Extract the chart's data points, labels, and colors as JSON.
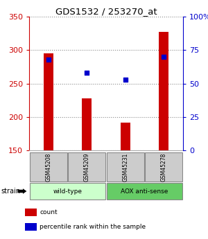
{
  "title": "GDS1532 / 253270_at",
  "samples": [
    "GSM45208",
    "GSM45209",
    "GSM45231",
    "GSM45278"
  ],
  "counts": [
    295,
    228,
    192,
    327
  ],
  "percentile_ranks": [
    68,
    58,
    53,
    70
  ],
  "ymin": 150,
  "ymax": 350,
  "y_ticks": [
    150,
    200,
    250,
    300,
    350
  ],
  "right_yticks": [
    0,
    25,
    50,
    75,
    100
  ],
  "right_yticklabels": [
    "0",
    "25",
    "50",
    "75",
    "100%"
  ],
  "bar_color": "#cc0000",
  "dot_color": "#0000cc",
  "grid_color": "#888888",
  "strain_groups": [
    {
      "label": "wild-type",
      "indices": [
        0,
        1
      ],
      "color": "#ccffcc"
    },
    {
      "label": "AOX anti-sense",
      "indices": [
        2,
        3
      ],
      "color": "#66cc66"
    }
  ],
  "strain_label": "strain",
  "legend_items": [
    {
      "color": "#cc0000",
      "label": "count"
    },
    {
      "color": "#0000cc",
      "label": "percentile rank within the sample"
    }
  ],
  "left_axis_color": "#cc0000",
  "right_axis_color": "#0000cc",
  "bar_width": 0.25,
  "sample_box_color": "#cccccc",
  "sample_box_edge": "#888888"
}
